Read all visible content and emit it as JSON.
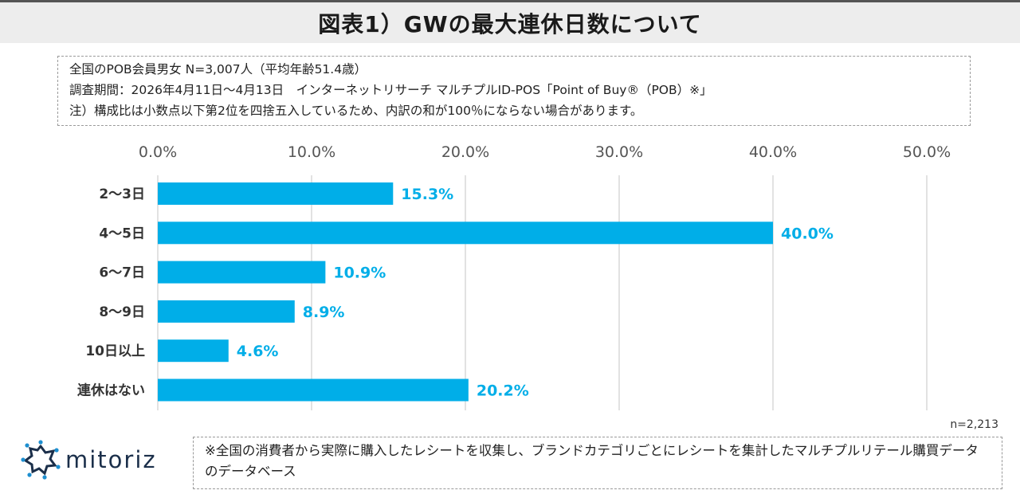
{
  "header": {
    "title": "図表1）GWの最大連休日数について"
  },
  "notes": {
    "line1": "全国のPOB会員男女 N=3,007人（平均年齢51.4歳）",
    "line2": "調査期間：2026年4月11日～4月13日　インターネットリサーチ マルチプルID-POS「Point of Buy®（POB）※」",
    "line3": "注）構成比は小数点以下第2位を四捨五入しているため、内訳の和が100％にならない場合があります。"
  },
  "chart_data": {
    "type": "bar",
    "orientation": "horizontal",
    "title": "",
    "categories": [
      "2～3日",
      "4～5日",
      "6～7日",
      "8～9日",
      "10日以上",
      "連休はない"
    ],
    "values": [
      15.3,
      40.0,
      10.9,
      8.9,
      4.6,
      20.2
    ],
    "value_labels": [
      "15.3%",
      "40.0%",
      "10.9%",
      "8.9%",
      "4.6%",
      "20.2%"
    ],
    "xlim": [
      0,
      50
    ],
    "x_ticks": [
      0,
      10,
      20,
      30,
      40,
      50
    ],
    "x_tick_labels": [
      "0.0%",
      "10.0%",
      "20.0%",
      "30.0%",
      "40.0%",
      "50.0%"
    ],
    "x_axis_position": "top",
    "grid": true,
    "bar_color": "#00aee8",
    "label_color": "#00aee8",
    "grid_color": "#d9d9d9"
  },
  "sample_size": "n=2,213",
  "logo": {
    "name": "mitoriz",
    "icon": "mitoriz-logo-icon",
    "color": "#1b2f4a",
    "accent": "#1e8fd0"
  },
  "footnote": {
    "text": "※全国の消費者から実際に購入したレシートを収集し、ブランドカテゴリごとにレシートを集計したマルチプルリテール購買データのデータベース"
  }
}
